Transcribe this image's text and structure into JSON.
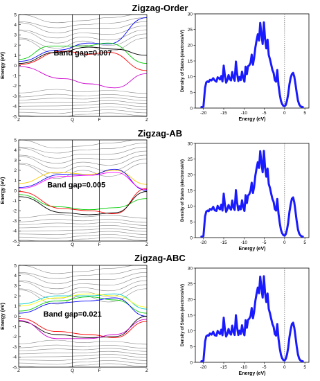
{
  "figure_titles": [
    "Zigzag-Order",
    "Zigzag-AB",
    "Zigzag-ABC"
  ],
  "colors": {
    "bands_gray": "#8a8a8a",
    "dos_line": "#1a1aff",
    "fermi_line": "#555555"
  },
  "chart_data": [
    {
      "type": "line",
      "title": "Zigzag-Order",
      "subtype": "band-structure",
      "ylabel": "Energy (eV)",
      "xticks": [
        "Z",
        "Q",
        "F",
        "Z"
      ],
      "ylim": [
        -5,
        5
      ],
      "yticks": [
        -5,
        -4,
        -3,
        -2,
        -1,
        0,
        1,
        2,
        3,
        4,
        5
      ],
      "annotation": "Band gap=0.007",
      "band_gap": 0.007,
      "highlighted_band_colors": [
        "#0000ff",
        "#00cc00",
        "#ff0000",
        "#000000",
        "#cc00cc"
      ]
    },
    {
      "type": "line",
      "title": "Zigzag-Order",
      "subtype": "density-of-states",
      "xlabel": "Energy (eV)",
      "ylabel": "Density of States (electrons/eV)",
      "xlim": [
        -22,
        6
      ],
      "ylim": [
        0,
        30
      ],
      "xticks": [
        -20,
        -15,
        -10,
        -5,
        0,
        5
      ],
      "yticks": [
        0,
        5,
        10,
        15,
        20,
        25,
        30
      ],
      "fermi_level": 0,
      "x": [
        -20.5,
        -20,
        -19.6,
        -19.3,
        -19,
        -18.7,
        -18.4,
        -18,
        -17.6,
        -17.2,
        -16.8,
        -16.5,
        -16.2,
        -15.9,
        -15.6,
        -15.3,
        -15,
        -14.7,
        -14.4,
        -14.1,
        -13.8,
        -13.5,
        -13.2,
        -12.9,
        -12.6,
        -12.3,
        -12,
        -11.7,
        -11.4,
        -11.1,
        -10.8,
        -10.5,
        -10.2,
        -9.9,
        -9.6,
        -9.3,
        -9,
        -8.7,
        -8.4,
        -8.1,
        -7.8,
        -7.5,
        -7.2,
        -6.9,
        -6.6,
        -6.3,
        -6,
        -5.7,
        -5.4,
        -5.1,
        -4.8,
        -4.5,
        -4.2,
        -3.9,
        -3.6,
        -3.3,
        -3,
        -2.7,
        -2.4,
        -2.1,
        -1.8,
        -1.5,
        -1.2,
        -0.9,
        -0.6,
        -0.3,
        0,
        0.3,
        0.6,
        0.9,
        1.2,
        1.5,
        1.8,
        2.1,
        2.4,
        2.7,
        3,
        3.3,
        3.6,
        3.9,
        4.2,
        4.5
      ],
      "y": [
        0.3,
        0.5,
        6.5,
        8.2,
        8.5,
        8.3,
        9,
        8.8,
        9.5,
        8.8,
        8.4,
        9.8,
        9.5,
        9.1,
        10.2,
        8.5,
        13.5,
        10.2,
        8.1,
        9,
        10.5,
        9.2,
        8.8,
        11.5,
        9.6,
        8.7,
        14.8,
        11,
        8.6,
        9.9,
        8.9,
        11.6,
        9.7,
        8.4,
        13.2,
        10.8,
        13.3,
        13.6,
        14.4,
        17,
        13.8,
        16,
        19.3,
        21.5,
        23.5,
        21.5,
        27.1,
        23.3,
        20.4,
        27.3,
        22,
        19,
        21.8,
        16.9,
        15.5,
        13.9,
        12.1,
        11.2,
        8.9,
        8.4,
        12.1,
        7.3,
        4.5,
        2.3,
        1.3,
        0.7,
        0.6,
        1,
        2.4,
        4.5,
        7.6,
        9.6,
        10.8,
        11.2,
        10,
        7.5,
        4.8,
        2.4,
        1.2,
        0.6,
        0.4,
        0.3
      ]
    },
    {
      "type": "line",
      "title": "Zigzag-AB",
      "subtype": "band-structure",
      "ylabel": "Energy (eV)",
      "xticks": [
        "Z",
        "Q",
        "F",
        "Z"
      ],
      "ylim": [
        -5,
        5
      ],
      "yticks": [
        -5,
        -4,
        -3,
        -2,
        -1,
        0,
        1,
        2,
        3,
        4,
        5
      ],
      "annotation": "Band gap=0.005",
      "band_gap": 0.005,
      "highlighted_band_colors": [
        "#ffcc00",
        "#0000ff",
        "#ff00ff",
        "#00cc00",
        "#ff0000",
        "#000000"
      ]
    },
    {
      "type": "line",
      "title": "Zigzag-AB",
      "subtype": "density-of-states",
      "xlabel": "Energy (eV)",
      "ylabel": "Density of States (electrons/eV)",
      "xlim": [
        -22,
        6
      ],
      "ylim": [
        0,
        30
      ],
      "xticks": [
        -20,
        -15,
        -10,
        -5,
        0,
        5
      ],
      "yticks": [
        0,
        5,
        10,
        15,
        20,
        25,
        30
      ],
      "fermi_level": 0,
      "x": [
        -20.5,
        -20,
        -19.6,
        -19.3,
        -19,
        -18.7,
        -18.4,
        -18,
        -17.6,
        -17.2,
        -16.8,
        -16.5,
        -16.2,
        -15.9,
        -15.6,
        -15.3,
        -15,
        -14.7,
        -14.4,
        -14.1,
        -13.8,
        -13.5,
        -13.2,
        -12.9,
        -12.6,
        -12.3,
        -12,
        -11.7,
        -11.4,
        -11.1,
        -10.8,
        -10.5,
        -10.2,
        -9.9,
        -9.6,
        -9.3,
        -9,
        -8.7,
        -8.4,
        -8.1,
        -7.8,
        -7.5,
        -7.2,
        -6.9,
        -6.6,
        -6.3,
        -6,
        -5.7,
        -5.4,
        -5.1,
        -4.8,
        -4.5,
        -4.2,
        -3.9,
        -3.6,
        -3.3,
        -3,
        -2.7,
        -2.4,
        -2.1,
        -1.8,
        -1.5,
        -1.2,
        -0.9,
        -0.6,
        -0.3,
        0,
        0.3,
        0.6,
        0.9,
        1.2,
        1.5,
        1.8,
        2.1,
        2.4,
        2.7,
        3,
        3.3,
        3.6,
        3.9,
        4.2,
        4.5
      ],
      "y": [
        0.3,
        0.5,
        6.8,
        8.3,
        8.6,
        8.4,
        9.1,
        8.9,
        9.8,
        8.7,
        8.5,
        10.1,
        9.3,
        9,
        10.5,
        8.6,
        14,
        10.3,
        8.2,
        9.1,
        10.4,
        9.4,
        8.9,
        11.8,
        9.5,
        8.8,
        15.1,
        11.2,
        8.7,
        10,
        9,
        11.9,
        9.8,
        8.5,
        13.5,
        11,
        13.4,
        13.8,
        14.9,
        17.5,
        14.2,
        16.2,
        19.8,
        22,
        24,
        22.2,
        27.5,
        23.8,
        20.8,
        27.6,
        22.4,
        19.4,
        22,
        17.1,
        15.8,
        14,
        12.3,
        11.4,
        9.1,
        8.6,
        12.3,
        7.6,
        4.8,
        2.5,
        1.4,
        0.8,
        0.6,
        1.1,
        2.6,
        4.8,
        8.2,
        10.5,
        12.4,
        12.8,
        11.2,
        8.2,
        5.2,
        2.6,
        1.3,
        0.7,
        0.4,
        0.3
      ]
    },
    {
      "type": "line",
      "title": "Zigzag-ABC",
      "subtype": "band-structure",
      "ylabel": "Energy (eV)",
      "xticks": [
        "Z",
        "Q",
        "F",
        "Z"
      ],
      "ylim": [
        -5,
        5
      ],
      "yticks": [
        -5,
        -4,
        -3,
        -2,
        -1,
        0,
        1,
        2,
        3,
        4,
        5
      ],
      "annotation": "Band gap=0.021",
      "band_gap": 0.021,
      "highlighted_band_colors": [
        "#00cccc",
        "#ffff00",
        "#00cc00",
        "#0000ff",
        "#ff0000",
        "#000000",
        "#cc00cc"
      ]
    },
    {
      "type": "line",
      "title": "Zigzag-ABC",
      "subtype": "density-of-states",
      "xlabel": "Energy (eV)",
      "ylabel": "Density of States (electrons/eV)",
      "xlim": [
        -22,
        6
      ],
      "ylim": [
        0,
        30
      ],
      "xticks": [
        -20,
        -15,
        -10,
        -5,
        0,
        5
      ],
      "yticks": [
        0,
        5,
        10,
        15,
        20,
        25,
        30
      ],
      "fermi_level": 0,
      "x": [
        -20.5,
        -20,
        -19.6,
        -19.3,
        -19,
        -18.7,
        -18.4,
        -18,
        -17.6,
        -17.2,
        -16.8,
        -16.5,
        -16.2,
        -15.9,
        -15.6,
        -15.3,
        -15,
        -14.7,
        -14.4,
        -14.1,
        -13.8,
        -13.5,
        -13.2,
        -12.9,
        -12.6,
        -12.3,
        -12,
        -11.7,
        -11.4,
        -11.1,
        -10.8,
        -10.5,
        -10.2,
        -9.9,
        -9.6,
        -9.3,
        -9,
        -8.7,
        -8.4,
        -8.1,
        -7.8,
        -7.5,
        -7.2,
        -6.9,
        -6.6,
        -6.3,
        -6,
        -5.7,
        -5.4,
        -5.1,
        -4.8,
        -4.5,
        -4.2,
        -3.9,
        -3.6,
        -3.3,
        -3,
        -2.7,
        -2.4,
        -2.1,
        -1.8,
        -1.5,
        -1.2,
        -0.9,
        -0.6,
        -0.3,
        0,
        0.3,
        0.6,
        0.9,
        1.2,
        1.5,
        1.8,
        2.1,
        2.4,
        2.7,
        3,
        3.3,
        3.6,
        3.9,
        4.2,
        4.5
      ],
      "y": [
        0.3,
        0.5,
        6.6,
        8.3,
        8.6,
        8.5,
        9.2,
        8.8,
        9.7,
        8.6,
        8.5,
        10,
        9.4,
        9,
        10.4,
        8.6,
        14.2,
        10.2,
        8.2,
        9.1,
        10.6,
        9.3,
        8.8,
        11.7,
        9.6,
        8.7,
        15,
        11.1,
        8.7,
        10.1,
        9,
        11.8,
        9.8,
        8.6,
        13.4,
        11,
        13.5,
        13.9,
        14.7,
        17.3,
        14,
        16.1,
        19.6,
        21.8,
        23.8,
        22,
        27.3,
        23.5,
        20.6,
        27.4,
        22.1,
        19.2,
        21.9,
        17,
        15.6,
        13.9,
        12.2,
        11.3,
        9,
        8.5,
        12.2,
        7.5,
        4.6,
        2.4,
        1.3,
        0.7,
        0.6,
        1.1,
        2.5,
        4.7,
        8,
        10.3,
        12.2,
        12.6,
        11,
        8,
        5,
        2.5,
        1.2,
        0.6,
        0.4,
        0.3
      ]
    }
  ]
}
